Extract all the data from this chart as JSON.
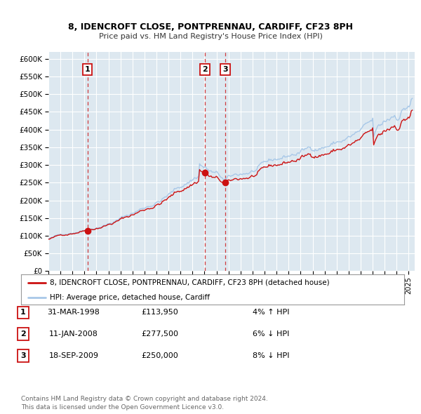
{
  "title1": "8, IDENCROFT CLOSE, PONTPRENNAU, CARDIFF, CF23 8PH",
  "title2": "Price paid vs. HM Land Registry's House Price Index (HPI)",
  "ylim": [
    0,
    600000
  ],
  "yticks": [
    0,
    50000,
    100000,
    150000,
    200000,
    250000,
    300000,
    350000,
    400000,
    450000,
    500000,
    550000,
    600000
  ],
  "ytick_labels": [
    "£0",
    "£50K",
    "£100K",
    "£150K",
    "£200K",
    "£250K",
    "£300K",
    "£350K",
    "£400K",
    "£450K",
    "£500K",
    "£550K",
    "£600K"
  ],
  "xlim_start": 1995.0,
  "xlim_end": 2025.5,
  "xtick_years": [
    1995,
    1996,
    1997,
    1998,
    1999,
    2000,
    2001,
    2002,
    2003,
    2004,
    2005,
    2006,
    2007,
    2008,
    2009,
    2010,
    2011,
    2012,
    2013,
    2014,
    2015,
    2016,
    2017,
    2018,
    2019,
    2020,
    2021,
    2022,
    2023,
    2024,
    2025
  ],
  "hpi_color": "#a8c8e8",
  "price_color": "#cc1111",
  "bg_color": "#dde8f0",
  "grid_color": "#ffffff",
  "sale_points": [
    {
      "year": 1998.25,
      "price": 113950,
      "label": "1"
    },
    {
      "year": 2008.03,
      "price": 277500,
      "label": "2"
    },
    {
      "year": 2009.72,
      "price": 250000,
      "label": "3"
    }
  ],
  "vline_years": [
    1998.25,
    2008.03,
    2009.72
  ],
  "legend_label_price": "8, IDENCROFT CLOSE, PONTPRENNAU, CARDIFF, CF23 8PH (detached house)",
  "legend_label_hpi": "HPI: Average price, detached house, Cardiff",
  "table_rows": [
    {
      "num": "1",
      "date": "31-MAR-1998",
      "price": "£113,950",
      "pct": "4% ↑ HPI"
    },
    {
      "num": "2",
      "date": "11-JAN-2008",
      "price": "£277,500",
      "pct": "6% ↓ HPI"
    },
    {
      "num": "3",
      "date": "18-SEP-2009",
      "price": "£250,000",
      "pct": "8% ↓ HPI"
    }
  ],
  "footer": "Contains HM Land Registry data © Crown copyright and database right 2024.\nThis data is licensed under the Open Government Licence v3.0."
}
